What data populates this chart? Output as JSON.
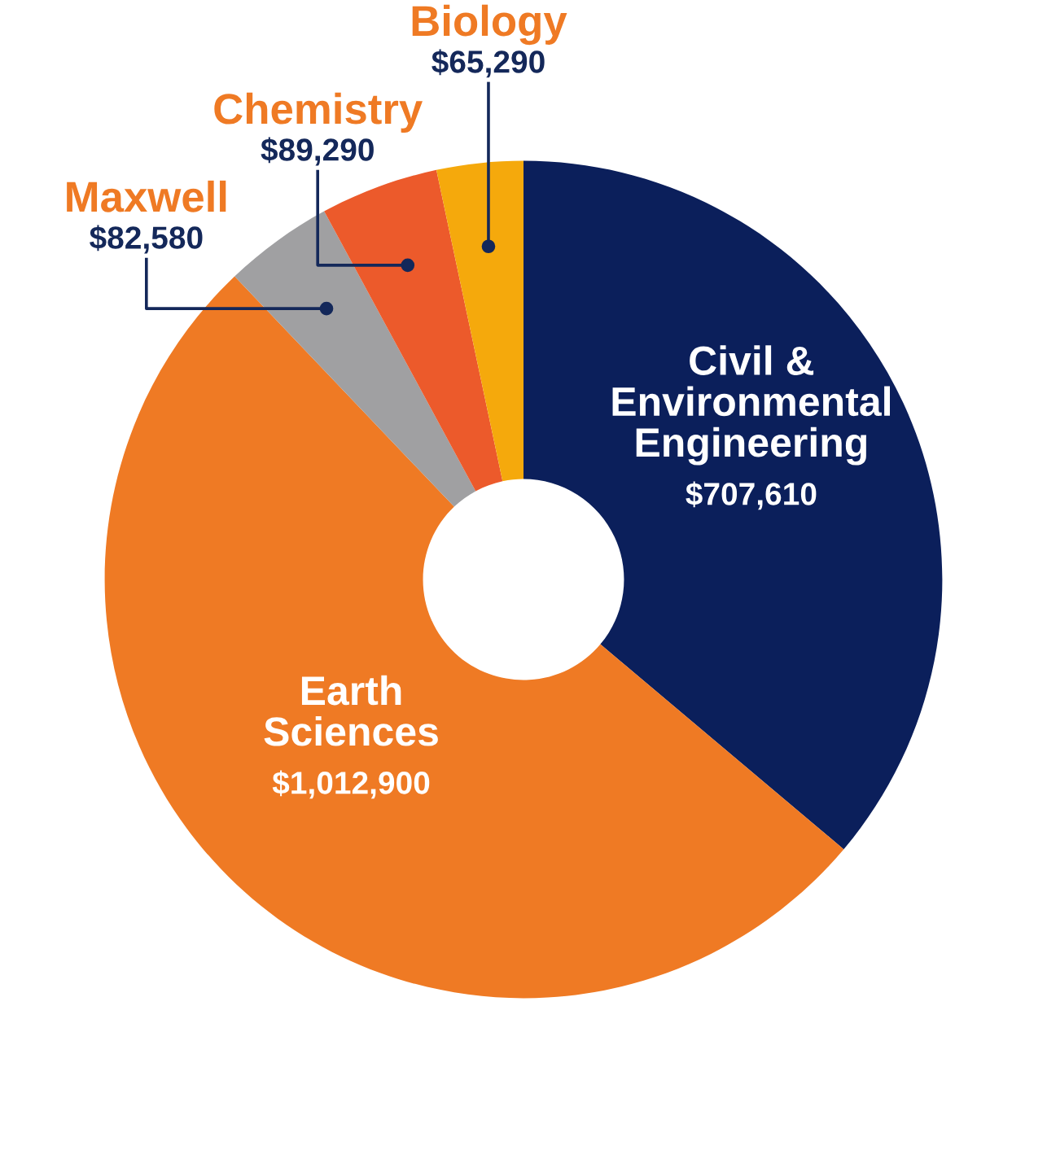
{
  "chart_data": {
    "type": "donut",
    "categories": [
      "Civil & Environmental Engineering",
      "Earth Sciences",
      "Maxwell",
      "Chemistry",
      "Biology"
    ],
    "values": [
      707610,
      1012900,
      82580,
      89290,
      65290
    ],
    "colors": [
      "#0b1f5b",
      "#ef7a24",
      "#a0a0a2",
      "#ec5a2b",
      "#f5a90c"
    ],
    "value_labels": [
      "$707,610",
      "$1,012,900",
      "$82,580",
      "$89,290",
      "$65,290"
    ],
    "legend": false
  }
}
